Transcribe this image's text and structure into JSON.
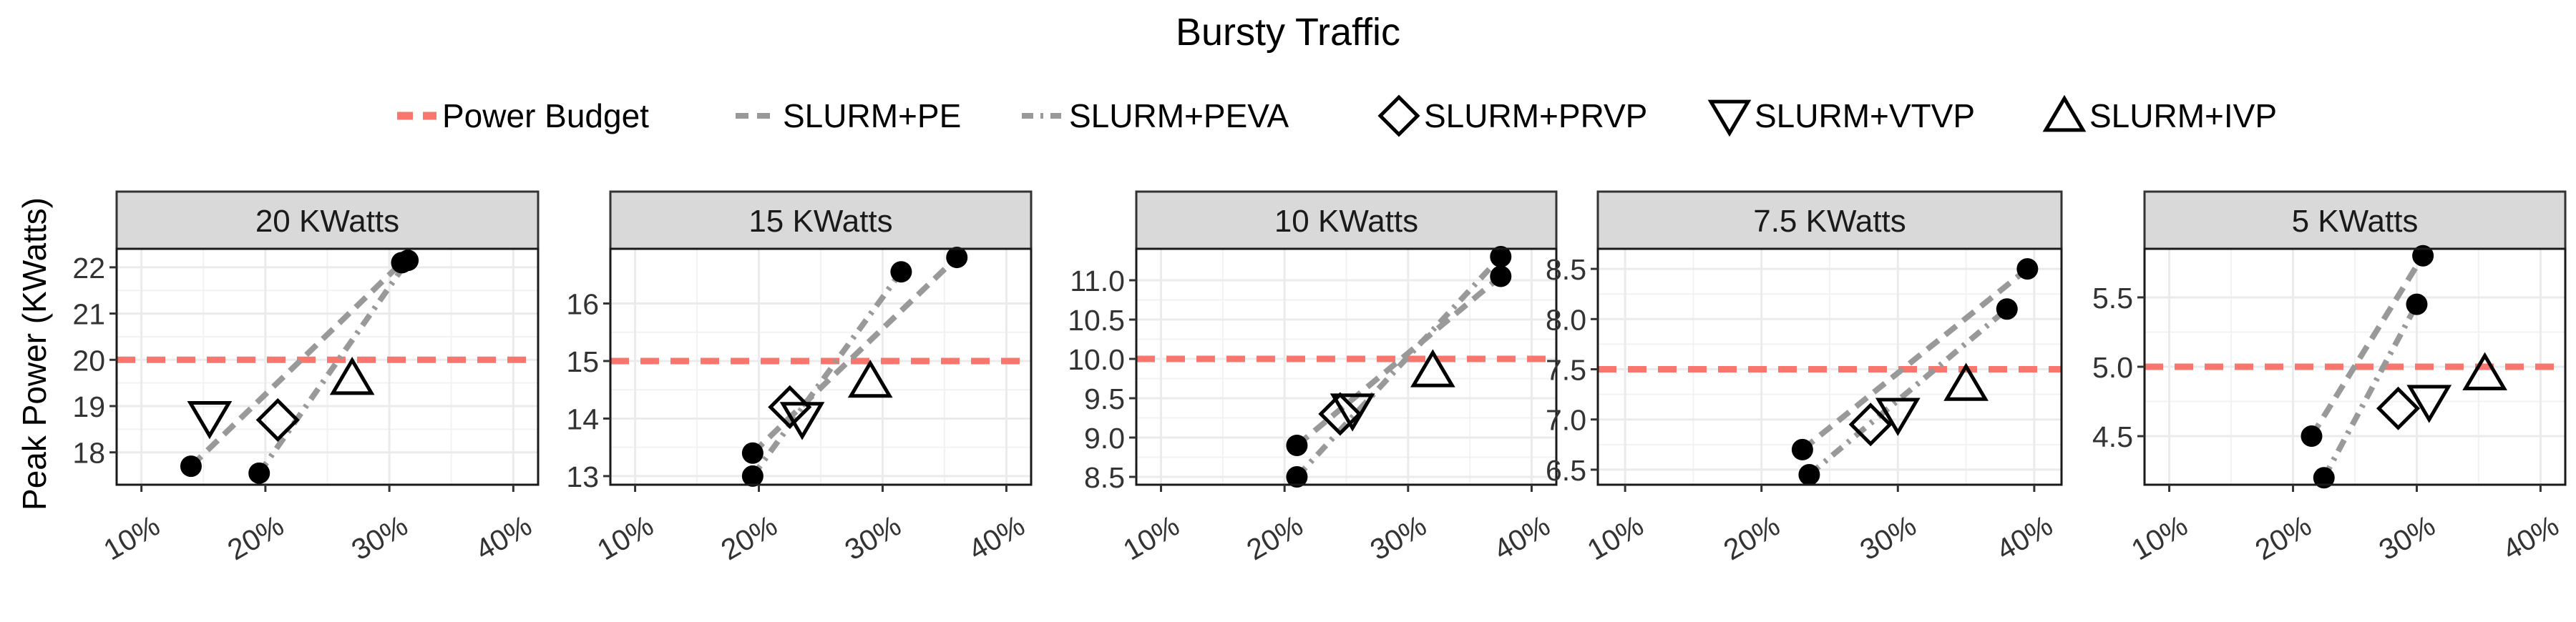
{
  "chart_data": {
    "type": "scatter",
    "title": "Bursty Traffic",
    "ylabel": "Peak Power (KWatts)",
    "xlabel": "",
    "xlim": [
      0.08,
      0.42
    ],
    "x_ticks": [
      0.1,
      0.2,
      0.3,
      0.4
    ],
    "x_tick_labels": [
      "10%",
      "20%",
      "30%",
      "40%"
    ],
    "grid": true,
    "legend_position": "top",
    "legend": [
      {
        "label": "Power Budget",
        "style": "dashed-line",
        "color": "#F8766D"
      },
      {
        "label": "SLURM+PE",
        "style": "dashed-line",
        "color": "#999999"
      },
      {
        "label": "SLURM+PEVA",
        "style": "dotdash-line",
        "color": "#999999"
      },
      {
        "label": "SLURM+PRVP",
        "style": "diamond-marker",
        "color": "#000000"
      },
      {
        "label": "SLURM+VTVP",
        "style": "triangle-down-marker",
        "color": "#000000"
      },
      {
        "label": "SLURM+IVP",
        "style": "triangle-up-marker",
        "color": "#000000"
      }
    ],
    "panels": [
      {
        "title": "20 KWatts",
        "budget": 20,
        "ylim": [
          17.3,
          22.4
        ],
        "y_ticks": [
          18,
          19,
          20,
          21,
          22
        ],
        "y_tick_labels": [
          "18",
          "19",
          "20",
          "21",
          "22"
        ],
        "pe_points": [
          [
            0.14,
            17.7
          ],
          [
            0.31,
            22.1
          ]
        ],
        "peva_points": [
          [
            0.195,
            17.55
          ],
          [
            0.315,
            22.15
          ]
        ],
        "prvp": [
          0.21,
          18.7
        ],
        "vtvp": [
          0.155,
          18.75
        ],
        "ivp": [
          0.27,
          19.6
        ]
      },
      {
        "title": "15 KWatts",
        "budget": 15,
        "ylim": [
          12.85,
          16.95
        ],
        "y_ticks": [
          13,
          14,
          15,
          16
        ],
        "y_tick_labels": [
          "13",
          "14",
          "15",
          "16"
        ],
        "pe_points": [
          [
            0.195,
            13.4
          ],
          [
            0.36,
            16.8
          ]
        ],
        "peva_points": [
          [
            0.195,
            13.0
          ],
          [
            0.315,
            16.55
          ]
        ],
        "prvp": [
          0.225,
          14.2
        ],
        "vtvp": [
          0.235,
          14.0
        ],
        "ivp": [
          0.29,
          14.65
        ]
      },
      {
        "title": "10 KWatts",
        "budget": 10,
        "ylim": [
          8.4,
          11.4
        ],
        "y_ticks": [
          8.5,
          9.0,
          9.5,
          10.0,
          10.5,
          11.0
        ],
        "y_tick_labels": [
          "8.5",
          "9.0",
          "9.5",
          "10.0",
          "10.5",
          "11.0"
        ],
        "pe_points": [
          [
            0.21,
            8.9
          ],
          [
            0.375,
            11.05
          ]
        ],
        "peva_points": [
          [
            0.21,
            8.5
          ],
          [
            0.375,
            11.3
          ]
        ],
        "prvp": [
          0.245,
          9.3
        ],
        "vtvp": [
          0.255,
          9.35
        ],
        "ivp": [
          0.32,
          9.85
        ]
      },
      {
        "title": "7.5 KWatts",
        "budget": 7.5,
        "ylim": [
          6.35,
          8.7
        ],
        "y_ticks": [
          6.5,
          7.0,
          7.5,
          8.0,
          8.5
        ],
        "y_tick_labels": [
          "6.5",
          "7.0",
          "7.5",
          "8.0",
          "8.5"
        ],
        "pe_points": [
          [
            0.23,
            6.7
          ],
          [
            0.395,
            8.5
          ]
        ],
        "peva_points": [
          [
            0.235,
            6.45
          ],
          [
            0.38,
            8.1
          ]
        ],
        "prvp": [
          0.28,
          6.95
        ],
        "vtvp": [
          0.3,
          7.05
        ],
        "ivp": [
          0.35,
          7.35
        ]
      },
      {
        "title": "5 KWatts",
        "budget": 5,
        "ylim": [
          4.15,
          5.85
        ],
        "y_ticks": [
          4.5,
          5.0,
          5.5
        ],
        "y_tick_labels": [
          "4.5",
          "5.0",
          "5.5"
        ],
        "pe_points": [
          [
            0.215,
            4.5
          ],
          [
            0.305,
            5.8
          ]
        ],
        "peva_points": [
          [
            0.225,
            4.2
          ],
          [
            0.3,
            5.45
          ]
        ],
        "prvp": [
          0.285,
          4.7
        ],
        "vtvp": [
          0.31,
          4.75
        ],
        "ivp": [
          0.355,
          4.95
        ]
      }
    ]
  }
}
